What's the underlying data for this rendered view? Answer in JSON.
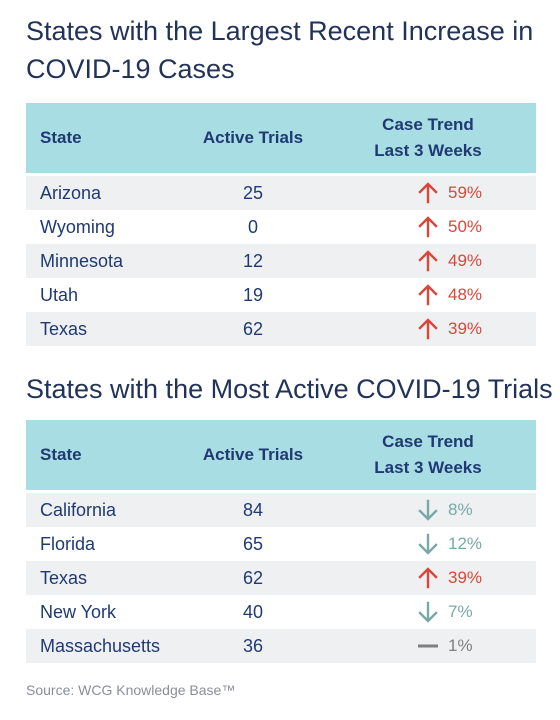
{
  "table1": {
    "title": "States with the Largest Recent Increase in COVID-19 Cases",
    "headers": {
      "state": "State",
      "trials": "Active Trials",
      "trend_line1": "Case Trend",
      "trend_line2": "Last 3 Weeks"
    },
    "rows": [
      {
        "state": "Arizona",
        "trials": "25",
        "trend": "59%",
        "direction": "up"
      },
      {
        "state": "Wyoming",
        "trials": "0",
        "trend": "50%",
        "direction": "up"
      },
      {
        "state": "Minnesota",
        "trials": "12",
        "trend": "49%",
        "direction": "up"
      },
      {
        "state": "Utah",
        "trials": "19",
        "trend": "48%",
        "direction": "up"
      },
      {
        "state": "Texas",
        "trials": "62",
        "trend": "39%",
        "direction": "up"
      }
    ]
  },
  "table2": {
    "title": "States with the Most Active COVID-19 Trials",
    "headers": {
      "state": "State",
      "trials": "Active Trials",
      "trend_line1": "Case Trend",
      "trend_line2": "Last 3 Weeks"
    },
    "rows": [
      {
        "state": "California",
        "trials": "84",
        "trend": "8%",
        "direction": "down"
      },
      {
        "state": "Florida",
        "trials": "65",
        "trend": "12%",
        "direction": "down"
      },
      {
        "state": "Texas",
        "trials": "62",
        "trend": "39%",
        "direction": "up"
      },
      {
        "state": "New York",
        "trials": "40",
        "trend": "7%",
        "direction": "down"
      },
      {
        "state": "Massachusetts",
        "trials": "36",
        "trend": "1%",
        "direction": "flat"
      }
    ]
  },
  "colors": {
    "up": "#d9473b",
    "down": "#7aa8a8",
    "flat": "#7f7f7f",
    "header_bg": "#a8dde3"
  },
  "source": "Source: WCG Knowledge Base™"
}
